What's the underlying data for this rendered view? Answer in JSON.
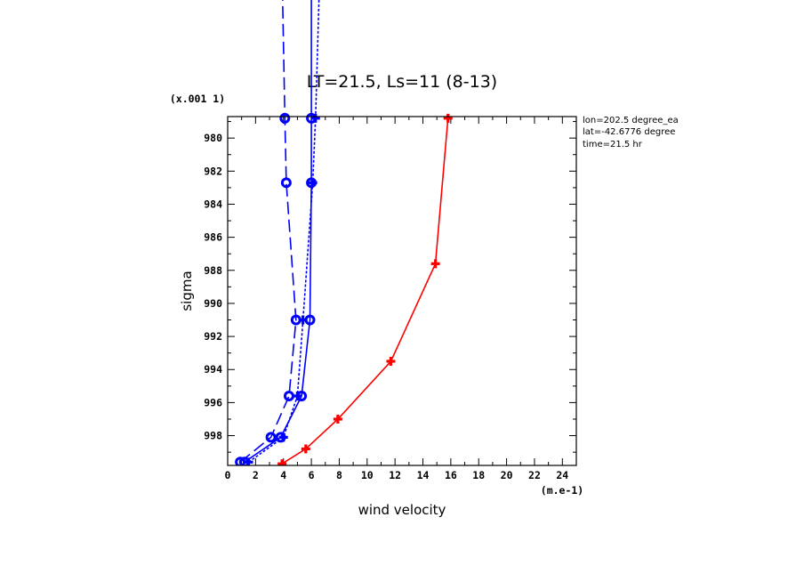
{
  "chart_data": {
    "type": "line",
    "title": "LT=21.5, Ls=11 (8-13)",
    "xlabel": "wind velocity",
    "ylabel": "sigma",
    "x_unit": "(m.e-1)",
    "y_unit": "(x.001 1)",
    "xlim": [
      0,
      25
    ],
    "ylim": [
      999.8,
      978.7
    ],
    "y_inverted": true,
    "x_ticks": [
      0,
      2,
      4,
      6,
      8,
      10,
      12,
      14,
      16,
      18,
      20,
      22,
      24
    ],
    "y_ticks": [
      980,
      982,
      984,
      986,
      988,
      990,
      992,
      994,
      996,
      998
    ],
    "annotations": [
      "lon=202.5 degree_ea",
      "lat=-42.6776 degree",
      "time=21.5 hr"
    ],
    "grid": false,
    "series": [
      {
        "color": "#ff0000",
        "dash": "solid",
        "marker": "plus",
        "x": [
          3.9,
          5.6,
          7.9,
          11.7,
          14.9,
          15.8
        ],
        "y": [
          999.7,
          998.8,
          997.0,
          993.5,
          987.6,
          978.8
        ]
      },
      {
        "color": "#0000ff",
        "dash": "solid",
        "marker": "circle",
        "x": [
          1.2,
          3.8,
          5.3,
          5.9,
          6.0,
          6.0,
          6.0
        ],
        "y": [
          999.6,
          998.1,
          995.6,
          991.0,
          982.7,
          978.8,
          970.0
        ]
      },
      {
        "color": "#0000ff",
        "dash": "dashed",
        "marker": "circle",
        "x": [
          0.9,
          3.1,
          4.4,
          4.9,
          4.2,
          4.1,
          3.9
        ],
        "y": [
          999.6,
          998.1,
          995.6,
          991.0,
          982.7,
          978.8,
          970.0
        ]
      },
      {
        "color": "#0000ff",
        "dash": "dotted",
        "marker": "plus",
        "x": [
          1.5,
          4.0,
          5.0,
          5.4,
          6.1,
          6.3,
          6.6
        ],
        "y": [
          999.6,
          998.1,
          995.6,
          991.0,
          982.7,
          978.8,
          970.0
        ]
      }
    ]
  }
}
